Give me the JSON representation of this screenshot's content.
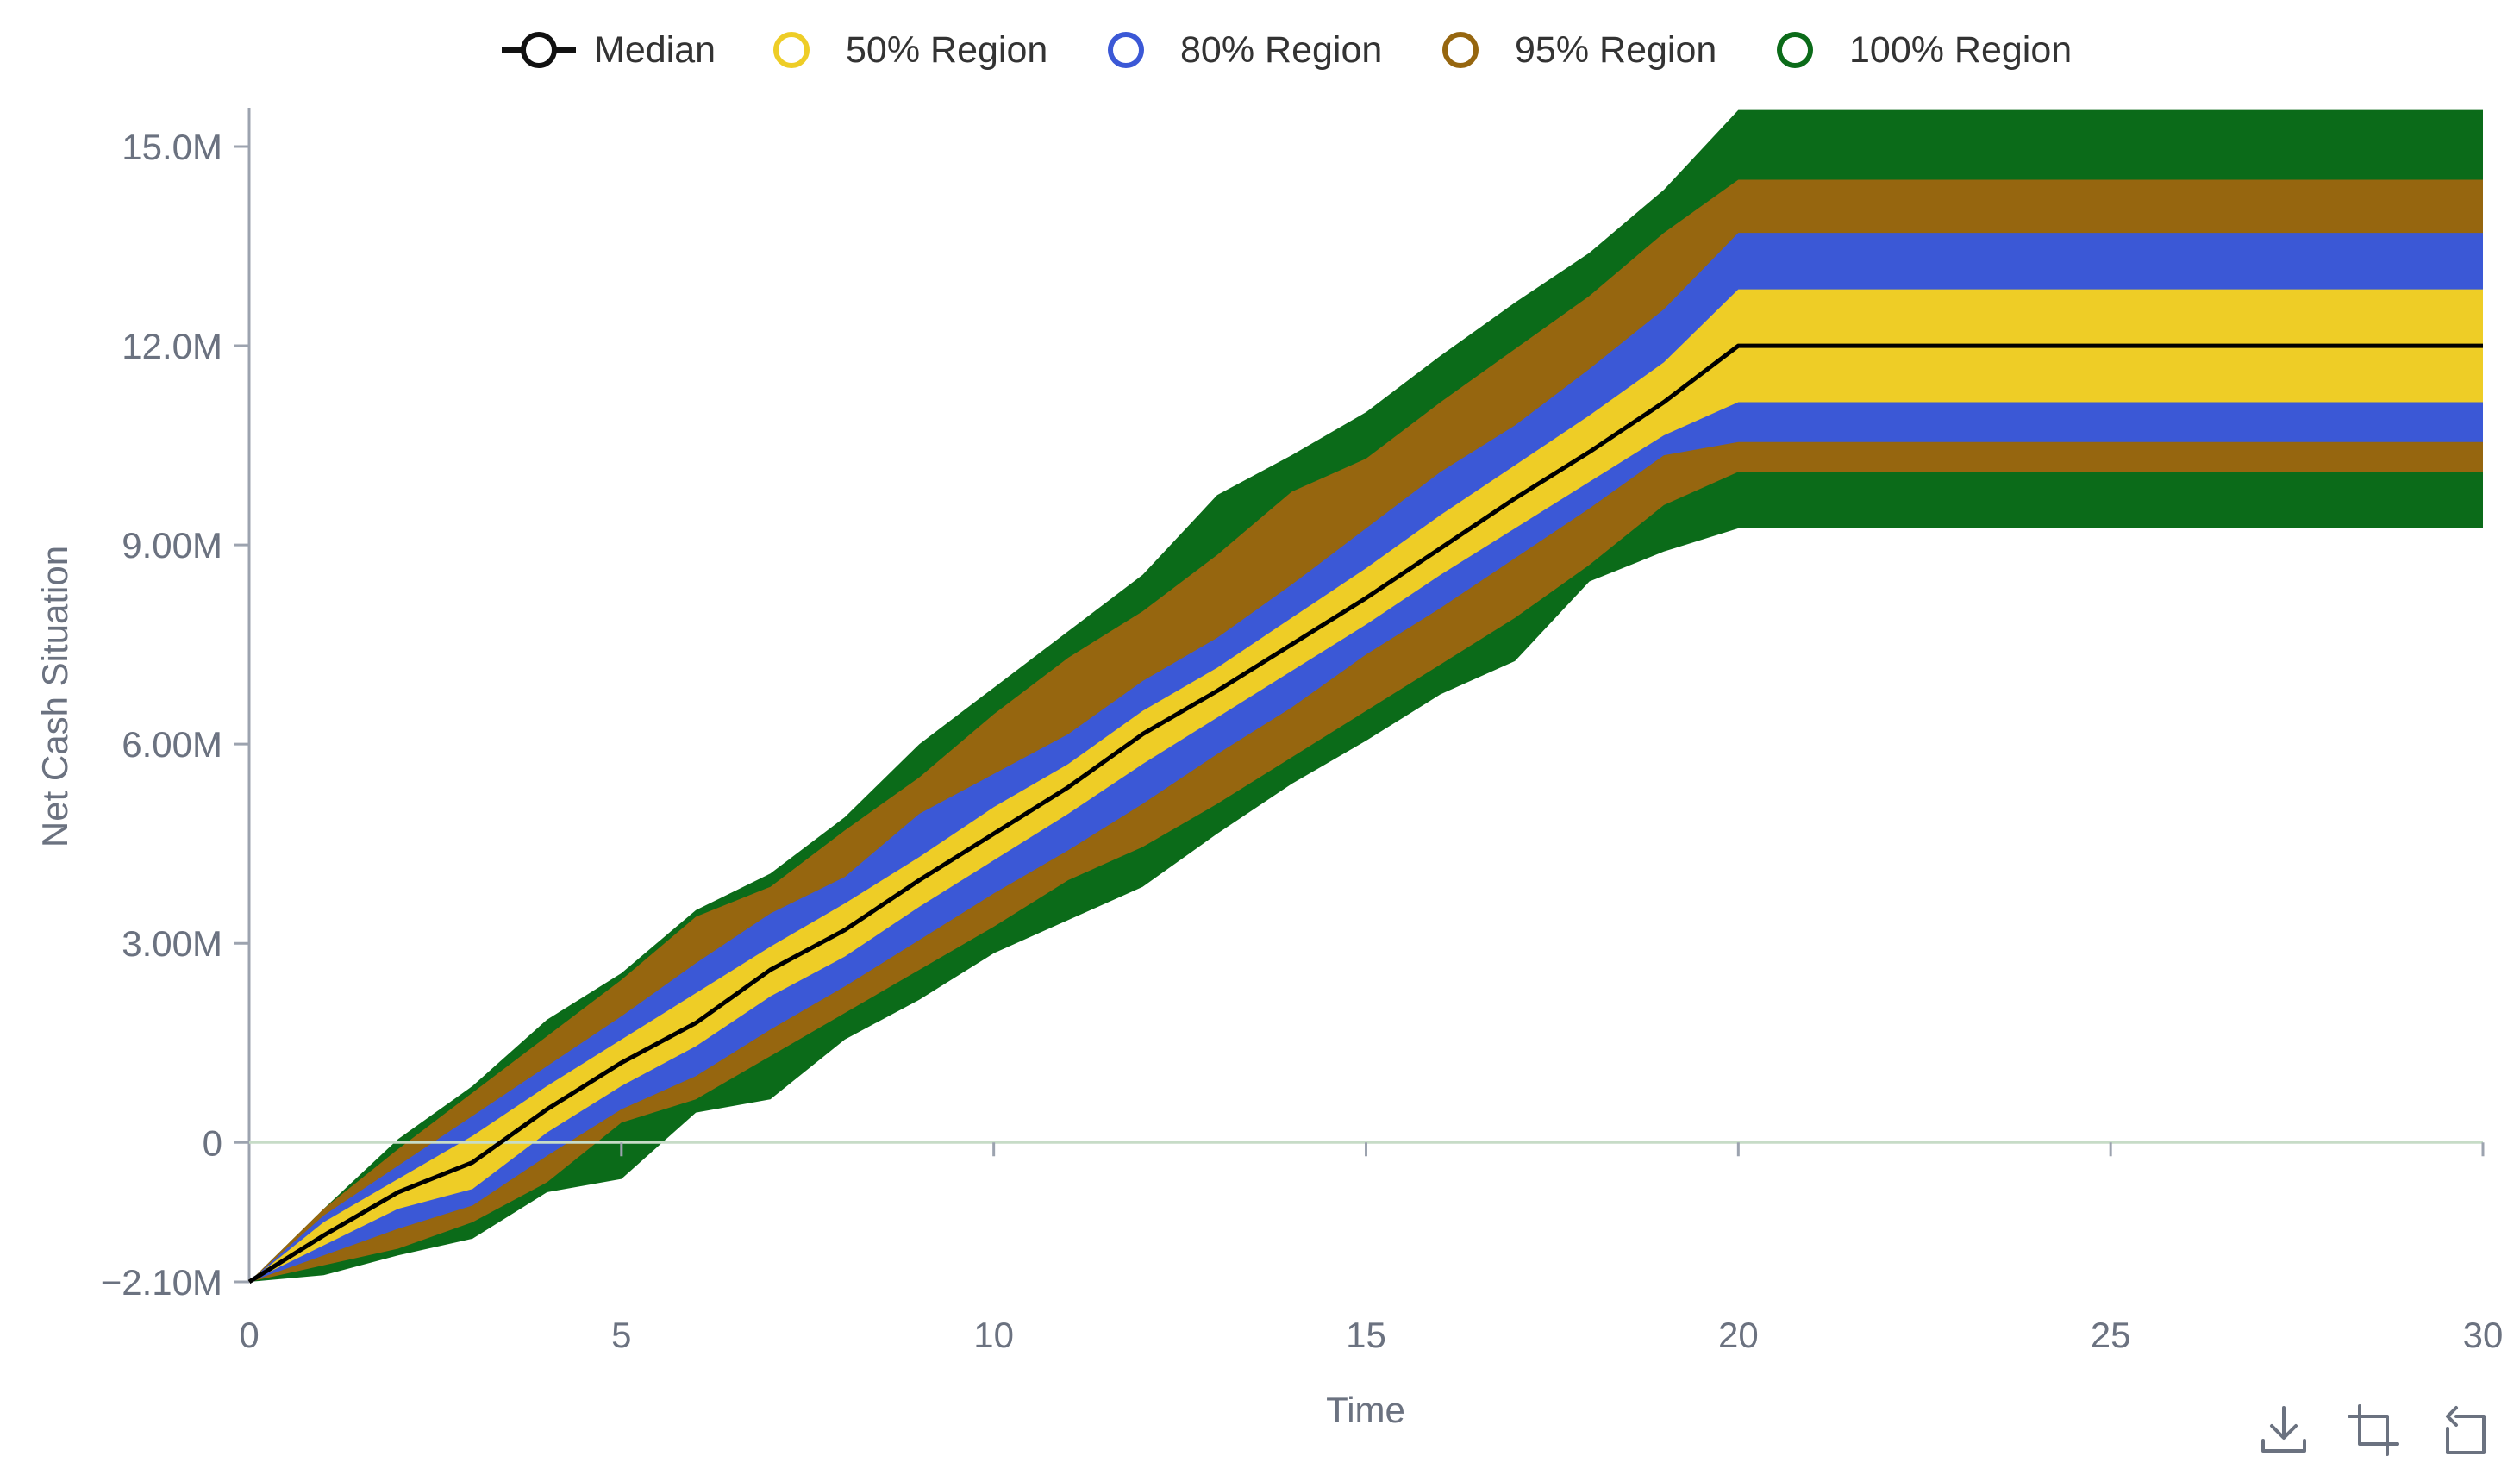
{
  "chart_data": {
    "type": "area",
    "title": "",
    "xlabel": "Time",
    "ylabel": "Net Cash Situation",
    "xlim": [
      0,
      30
    ],
    "ylim": [
      -2.1,
      15.5
    ],
    "x_ticks": [
      0,
      5,
      10,
      15,
      20,
      25,
      30
    ],
    "x_tick_labels": [
      "0",
      "5",
      "10",
      "15",
      "20",
      "25",
      "30"
    ],
    "y_ticks": [
      -2.1,
      0,
      3,
      6,
      9,
      12,
      15
    ],
    "y_tick_labels": [
      "−2.10M",
      "0",
      "3.00M",
      "6.00M",
      "9.00M",
      "12.0M",
      "15.0M"
    ],
    "units": "millions",
    "legend_position": "top-center",
    "x": [
      0,
      1,
      2,
      3,
      4,
      5,
      6,
      7,
      8,
      9,
      10,
      11,
      12,
      13,
      14,
      15,
      16,
      17,
      18,
      19,
      20,
      21,
      22,
      23,
      24,
      25,
      26,
      27,
      28,
      29,
      30
    ],
    "series": [
      {
        "name": "Median",
        "kind": "line",
        "color": "#000000",
        "values": [
          -2.1,
          -1.4,
          -0.75,
          -0.3,
          0.5,
          1.2,
          1.8,
          2.6,
          3.2,
          3.95,
          4.65,
          5.35,
          6.15,
          6.8,
          7.5,
          8.2,
          8.95,
          9.7,
          10.4,
          11.15,
          12.0,
          12.0,
          12.0,
          12.0,
          12.0,
          12.0,
          12.0,
          12.0,
          12.0,
          12.0,
          12.0
        ]
      },
      {
        "name": "50% Region",
        "kind": "band",
        "color": "#eecd26",
        "upper": [
          -2.1,
          -1.2,
          -0.55,
          0.1,
          0.85,
          1.55,
          2.25,
          2.95,
          3.6,
          4.3,
          5.05,
          5.7,
          6.5,
          7.15,
          7.9,
          8.65,
          9.45,
          10.2,
          10.95,
          11.75,
          12.85,
          12.85,
          12.85,
          12.85,
          12.85,
          12.85,
          12.85,
          12.85,
          12.85,
          12.85,
          12.85
        ],
        "lower": [
          -2.1,
          -1.55,
          -1.0,
          -0.7,
          0.15,
          0.85,
          1.45,
          2.2,
          2.8,
          3.55,
          4.25,
          4.95,
          5.7,
          6.4,
          7.1,
          7.8,
          8.55,
          9.25,
          9.95,
          10.65,
          11.15,
          11.15,
          11.15,
          11.15,
          11.15,
          11.15,
          11.15,
          11.15,
          11.15,
          11.15,
          11.15
        ]
      },
      {
        "name": "80% Region",
        "kind": "band",
        "color": "#3b58d6",
        "upper": [
          -2.1,
          -1.1,
          -0.35,
          0.4,
          1.15,
          1.9,
          2.7,
          3.45,
          4.0,
          4.95,
          5.55,
          6.15,
          6.95,
          7.6,
          8.4,
          9.25,
          10.1,
          10.8,
          11.65,
          12.55,
          13.7,
          13.7,
          13.7,
          13.7,
          13.7,
          13.7,
          13.7,
          13.7,
          13.7,
          13.7,
          13.7
        ],
        "lower": [
          -2.1,
          -1.7,
          -1.3,
          -0.95,
          -0.2,
          0.5,
          1.0,
          1.7,
          2.35,
          3.05,
          3.75,
          4.4,
          5.1,
          5.85,
          6.55,
          7.35,
          8.05,
          8.8,
          9.55,
          10.35,
          10.55,
          10.55,
          10.55,
          10.55,
          10.55,
          10.55,
          10.55,
          10.55,
          10.55,
          10.55,
          10.55
        ]
      },
      {
        "name": "95% Region",
        "kind": "band",
        "color": "#96660f",
        "upper": [
          -2.1,
          -1.0,
          -0.1,
          0.75,
          1.6,
          2.45,
          3.4,
          3.85,
          4.7,
          5.5,
          6.45,
          7.3,
          8.0,
          8.85,
          9.8,
          10.3,
          11.15,
          11.95,
          12.75,
          13.7,
          14.5,
          14.5,
          14.5,
          14.5,
          14.5,
          14.5,
          14.5,
          14.5,
          14.5,
          14.5,
          14.5
        ],
        "lower": [
          -2.1,
          -1.85,
          -1.6,
          -1.2,
          -0.6,
          0.3,
          0.65,
          1.3,
          1.95,
          2.6,
          3.25,
          3.95,
          4.45,
          5.1,
          5.8,
          6.5,
          7.2,
          7.9,
          8.7,
          9.6,
          10.1,
          10.1,
          10.1,
          10.1,
          10.1,
          10.1,
          10.1,
          10.1,
          10.1,
          10.1,
          10.1
        ]
      },
      {
        "name": "100% Region",
        "kind": "band",
        "color": "#0b6b19",
        "upper": [
          -2.1,
          -1.0,
          0.05,
          0.85,
          1.85,
          2.55,
          3.5,
          4.05,
          4.9,
          6.0,
          6.85,
          7.7,
          8.55,
          9.75,
          10.35,
          11.0,
          11.85,
          12.65,
          13.4,
          14.35,
          15.55,
          15.55,
          15.55,
          15.55,
          15.55,
          15.55,
          15.55,
          15.55,
          15.55,
          15.55,
          15.55
        ],
        "lower": [
          -2.1,
          -2.0,
          -1.7,
          -1.45,
          -0.75,
          -0.55,
          0.45,
          0.65,
          1.55,
          2.15,
          2.85,
          3.35,
          3.85,
          4.65,
          5.4,
          6.05,
          6.75,
          7.25,
          8.45,
          8.9,
          9.25,
          9.25,
          9.25,
          9.25,
          9.25,
          9.25,
          9.25,
          9.25,
          9.25,
          9.25,
          9.25
        ]
      }
    ]
  },
  "legend": [
    {
      "label": "Median",
      "color": "#111111",
      "shape": "line-circle"
    },
    {
      "label": "50% Region",
      "color": "#eecd26",
      "shape": "circle"
    },
    {
      "label": "80% Region",
      "color": "#3b58d6",
      "shape": "circle"
    },
    {
      "label": "95% Region",
      "color": "#96660f",
      "shape": "circle"
    },
    {
      "label": "100% Region",
      "color": "#0b6b19",
      "shape": "circle"
    }
  ],
  "toolbar": [
    {
      "name": "download-icon",
      "title": "Download"
    },
    {
      "name": "crop-icon",
      "title": "Crop"
    },
    {
      "name": "reset-icon",
      "title": "Reset"
    }
  ]
}
